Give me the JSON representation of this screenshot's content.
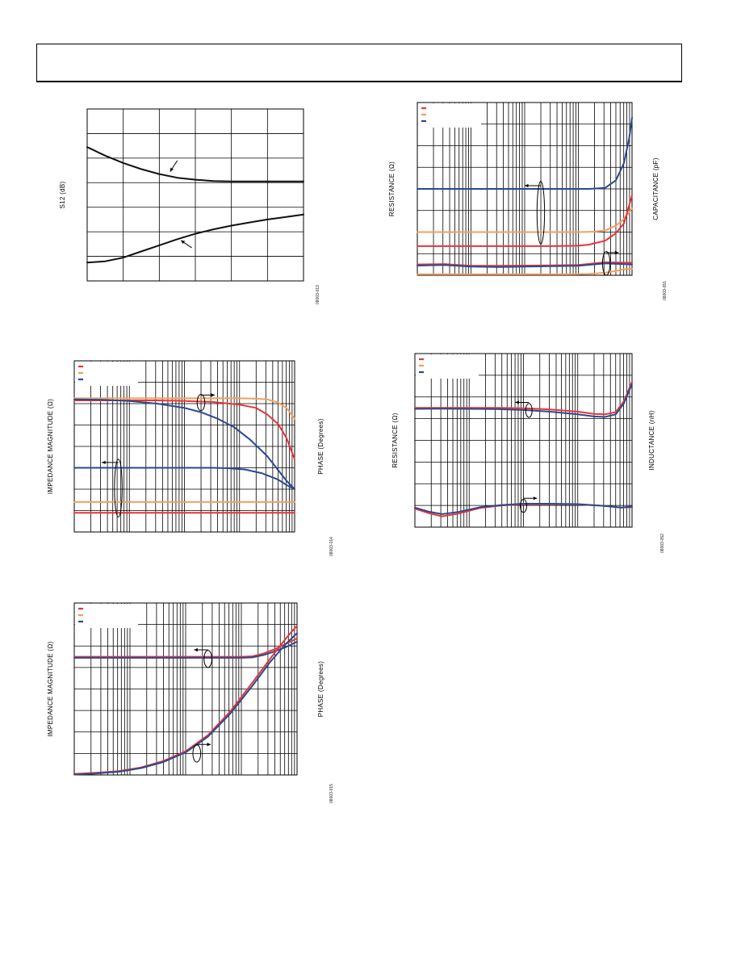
{
  "page": {
    "header_text": ""
  },
  "colors": {
    "red": "#e8343a",
    "orange": "#f0a060",
    "blue": "#2a4a8e",
    "black": "#111111"
  },
  "chart_data": [
    {
      "id": "c1",
      "type": "line",
      "grid": "linear",
      "xlim": [
        0,
        6
      ],
      "ylim": [
        0,
        7
      ],
      "ylabel_left": "S12 (dB)",
      "ylabel_right": "",
      "fig_id": "08003-013",
      "legend": [],
      "series": [
        {
          "name": "",
          "color": "black",
          "x": [
            0,
            0.5,
            1,
            1.5,
            2,
            2.5,
            3,
            3.5,
            4,
            4.5,
            5,
            5.5,
            6
          ],
          "y": [
            5.45,
            5.1,
            4.8,
            4.55,
            4.35,
            4.2,
            4.12,
            4.07,
            4.05,
            4.05,
            4.05,
            4.05,
            4.05
          ]
        },
        {
          "name": "",
          "color": "black",
          "x": [
            0,
            0.5,
            1,
            1.5,
            2,
            2.5,
            3,
            3.5,
            4,
            4.5,
            5,
            5.5,
            6
          ],
          "y": [
            0.75,
            0.8,
            0.95,
            1.2,
            1.45,
            1.7,
            1.92,
            2.1,
            2.25,
            2.38,
            2.5,
            2.6,
            2.7
          ]
        }
      ],
      "markers": [
        {
          "type": "arrow",
          "x1": 2.5,
          "y1": 4.9,
          "x2": 2.3,
          "y2": 4.45
        },
        {
          "type": "arrow",
          "x1": 2.9,
          "y1": 1.35,
          "x2": 2.6,
          "y2": 1.65
        }
      ]
    },
    {
      "id": "c2",
      "type": "line",
      "grid": "log",
      "decades": 4,
      "ylim": [
        0,
        8
      ],
      "ylabel_left": "RESISTANCE (Ω)",
      "ylabel_right": "CAPACITANCE (pF)",
      "fig_id": "08003-051",
      "legend": [
        "red",
        "orange",
        "blue"
      ],
      "series": [
        {
          "name": "",
          "color": "blue",
          "x": [
            0,
            0.5,
            1,
            1.5,
            2,
            2.5,
            3,
            3.2,
            3.5,
            3.7,
            3.85,
            3.95,
            4
          ],
          "y": [
            4.0,
            4.0,
            4.0,
            4.0,
            4.0,
            4.0,
            4.0,
            4.0,
            4.05,
            4.4,
            5.2,
            6.4,
            7.3
          ]
        },
        {
          "name": "",
          "color": "orange",
          "x": [
            0,
            0.5,
            1,
            1.5,
            2,
            2.5,
            3,
            3.3,
            3.5,
            3.7,
            3.85,
            4
          ],
          "y": [
            2.0,
            2.0,
            2.0,
            2.0,
            2.0,
            2.0,
            2.0,
            2.02,
            2.08,
            2.3,
            2.6,
            3.1
          ]
        },
        {
          "name": "",
          "color": "red",
          "x": [
            0,
            0.5,
            1,
            1.5,
            2,
            2.5,
            3,
            3.2,
            3.5,
            3.7,
            3.85,
            4
          ],
          "y": [
            1.35,
            1.35,
            1.35,
            1.35,
            1.35,
            1.35,
            1.37,
            1.42,
            1.6,
            1.95,
            2.4,
            3.7
          ]
        },
        {
          "name": "",
          "color": "red",
          "x": [
            0,
            0.5,
            1,
            1.5,
            2,
            2.5,
            3,
            3.5,
            4
          ],
          "y": [
            0.5,
            0.52,
            0.44,
            0.44,
            0.45,
            0.46,
            0.48,
            0.6,
            0.58
          ]
        },
        {
          "name": "",
          "color": "blue",
          "x": [
            0,
            0.5,
            1,
            1.5,
            2,
            2.5,
            3,
            3.5,
            4
          ],
          "y": [
            0.45,
            0.48,
            0.4,
            0.38,
            0.4,
            0.42,
            0.44,
            0.55,
            0.5
          ]
        },
        {
          "name": "",
          "color": "orange",
          "x": [
            0,
            1,
            2,
            2.8,
            3.2,
            3.5,
            3.7,
            3.85,
            4
          ],
          "y": [
            0.05,
            0.05,
            0.05,
            0.05,
            0.06,
            0.12,
            0.2,
            0.28,
            0.3
          ]
        }
      ],
      "markers": [
        {
          "type": "ellipse",
          "x": 2.3,
          "y": 2.9,
          "rx": 0.07,
          "ry": 1.45
        },
        {
          "type": "arrow",
          "x1": 2.3,
          "y1": 4.15,
          "x2": 2.0,
          "y2": 4.15
        },
        {
          "type": "ellipse",
          "x": 3.52,
          "y": 0.55,
          "rx": 0.07,
          "ry": 0.55
        },
        {
          "type": "arrow",
          "x1": 3.52,
          "y1": 1.05,
          "x2": 3.75,
          "y2": 1.05
        }
      ]
    },
    {
      "id": "c3",
      "type": "line",
      "grid": "log",
      "decades": 4,
      "ylim": [
        0,
        8
      ],
      "ylabel_left": "IMPEDANCE MAGNITUDE (Ω)",
      "ylabel_right": "PHASE (Degrees)",
      "fig_id": "08003-014",
      "legend": [
        "red",
        "orange",
        "blue"
      ],
      "series": [
        {
          "name": "",
          "color": "orange",
          "x": [
            0,
            0.5,
            1,
            1.5,
            2,
            2.5,
            3,
            3.3,
            3.5,
            3.7,
            3.85,
            4
          ],
          "y": [
            6.25,
            6.25,
            6.25,
            6.25,
            6.25,
            6.25,
            6.25,
            6.23,
            6.2,
            6.05,
            5.8,
            5.3
          ]
        },
        {
          "name": "",
          "color": "red",
          "x": [
            0,
            0.5,
            1,
            1.5,
            2,
            2.5,
            3,
            3.3,
            3.5,
            3.7,
            3.85,
            4
          ],
          "y": [
            6.15,
            6.15,
            6.15,
            6.15,
            6.12,
            6.08,
            5.95,
            5.8,
            5.5,
            5.05,
            4.4,
            3.4
          ]
        },
        {
          "name": "",
          "color": "blue",
          "x": [
            0,
            0.5,
            1,
            1.5,
            2,
            2.3,
            2.6,
            2.9,
            3.2,
            3.5,
            3.7,
            3.85,
            4
          ],
          "y": [
            6.2,
            6.18,
            6.12,
            6.0,
            5.8,
            5.6,
            5.3,
            4.9,
            4.3,
            3.55,
            2.9,
            2.4,
            2.0
          ]
        },
        {
          "name": "",
          "color": "blue",
          "x": [
            0,
            0.5,
            1,
            1.5,
            2,
            2.5,
            2.8,
            3.1,
            3.4,
            3.7,
            3.85,
            4
          ],
          "y": [
            3.0,
            3.0,
            3.0,
            3.0,
            3.0,
            3.0,
            2.98,
            2.92,
            2.75,
            2.45,
            2.2,
            2.0
          ]
        },
        {
          "name": "",
          "color": "orange",
          "x": [
            0,
            4
          ],
          "y": [
            1.4,
            1.4
          ]
        },
        {
          "name": "",
          "color": "red",
          "x": [
            0,
            4
          ],
          "y": [
            0.9,
            0.9
          ]
        }
      ],
      "markers": [
        {
          "type": "ellipse",
          "x": 2.3,
          "y": 6.05,
          "rx": 0.07,
          "ry": 0.38
        },
        {
          "type": "arrow",
          "x1": 2.3,
          "y1": 6.4,
          "x2": 2.55,
          "y2": 6.4
        },
        {
          "type": "ellipse",
          "x": 0.8,
          "y": 2.05,
          "rx": 0.07,
          "ry": 1.35
        },
        {
          "type": "arrow",
          "x1": 0.8,
          "y1": 3.25,
          "x2": 0.5,
          "y2": 3.25
        }
      ]
    },
    {
      "id": "c4",
      "type": "line",
      "grid": "log",
      "decades": 4,
      "ylim": [
        0,
        8
      ],
      "ylabel_left": "RESISTANCE (Ω)",
      "ylabel_right": "INDUCTANCE (nH)",
      "fig_id": "08003-052",
      "legend": [
        "red",
        "orange",
        "blue"
      ],
      "series": [
        {
          "name": "",
          "color": "red",
          "x": [
            0,
            0.5,
            1,
            1.5,
            2,
            2.5,
            3,
            3.3,
            3.5,
            3.7,
            3.85,
            4
          ],
          "y": [
            5.5,
            5.5,
            5.5,
            5.5,
            5.48,
            5.42,
            5.32,
            5.22,
            5.2,
            5.3,
            5.8,
            6.7
          ]
        },
        {
          "name": "",
          "color": "blue",
          "x": [
            0,
            0.5,
            1,
            1.5,
            2,
            2.5,
            3,
            3.3,
            3.5,
            3.7,
            3.85,
            4
          ],
          "y": [
            5.45,
            5.46,
            5.45,
            5.44,
            5.4,
            5.32,
            5.2,
            5.1,
            5.08,
            5.2,
            5.7,
            6.6
          ]
        },
        {
          "name": "",
          "color": "red",
          "x": [
            0,
            0.25,
            0.5,
            0.8,
            1.2,
            1.6,
            2,
            2.5,
            3,
            3.5,
            3.8,
            4
          ],
          "y": [
            0.85,
            0.65,
            0.5,
            0.62,
            0.88,
            1.0,
            1.05,
            1.06,
            1.05,
            0.98,
            0.9,
            0.92
          ]
        },
        {
          "name": "",
          "color": "blue",
          "x": [
            0,
            0.25,
            0.5,
            0.8,
            1.2,
            1.6,
            2,
            2.5,
            3,
            3.5,
            3.8,
            4
          ],
          "y": [
            0.9,
            0.72,
            0.6,
            0.7,
            0.92,
            1.02,
            1.08,
            1.08,
            1.06,
            0.98,
            0.9,
            0.95
          ]
        }
      ],
      "markers": [
        {
          "type": "ellipse",
          "x": 2.1,
          "y": 5.38,
          "rx": 0.06,
          "ry": 0.32
        },
        {
          "type": "arrow",
          "x1": 2.1,
          "y1": 5.75,
          "x2": 1.85,
          "y2": 5.75
        },
        {
          "type": "ellipse",
          "x": 2.0,
          "y": 0.98,
          "rx": 0.06,
          "ry": 0.3
        },
        {
          "type": "arrow",
          "x1": 2.0,
          "y1": 1.33,
          "x2": 2.25,
          "y2": 1.33
        }
      ]
    },
    {
      "id": "c5",
      "type": "line",
      "grid": "log",
      "decades": 4,
      "ylim": [
        0,
        8
      ],
      "ylabel_left": "IMPEDANCE MAGNITUDE (Ω)",
      "ylabel_right": "PHASE (Degrees)",
      "fig_id": "08003-015",
      "legend": [
        "red",
        "orange",
        "blue"
      ],
      "series": [
        {
          "name": "",
          "color": "red",
          "x": [
            0,
            0.5,
            1,
            1.5,
            2,
            2.5,
            3,
            3.2,
            3.4,
            3.6,
            3.8,
            4
          ],
          "y": [
            5.5,
            5.5,
            5.5,
            5.5,
            5.5,
            5.5,
            5.5,
            5.52,
            5.65,
            5.85,
            6.1,
            6.35
          ]
        },
        {
          "name": "",
          "color": "blue",
          "x": [
            0,
            0.5,
            1,
            1.5,
            2,
            2.5,
            3,
            3.2,
            3.4,
            3.6,
            3.8,
            4
          ],
          "y": [
            5.45,
            5.45,
            5.45,
            5.45,
            5.45,
            5.45,
            5.45,
            5.47,
            5.58,
            5.75,
            5.95,
            6.2
          ]
        },
        {
          "name": "",
          "color": "red",
          "x": [
            0,
            0.4,
            0.8,
            1.2,
            1.6,
            2,
            2.4,
            2.8,
            3.2,
            3.5,
            3.8,
            4
          ],
          "y": [
            0.05,
            0.1,
            0.18,
            0.35,
            0.65,
            1.1,
            1.85,
            2.95,
            4.3,
            5.35,
            6.35,
            6.95
          ]
        },
        {
          "name": "",
          "color": "blue",
          "x": [
            0,
            0.4,
            0.8,
            1.2,
            1.6,
            2,
            2.4,
            2.8,
            3.2,
            3.5,
            3.8,
            4
          ],
          "y": [
            0.02,
            0.07,
            0.15,
            0.32,
            0.6,
            1.05,
            1.78,
            2.85,
            4.15,
            5.2,
            6.1,
            6.6
          ]
        }
      ],
      "markers": [
        {
          "type": "ellipse",
          "x": 2.4,
          "y": 5.4,
          "rx": 0.07,
          "ry": 0.4
        },
        {
          "type": "arrow",
          "x1": 2.4,
          "y1": 5.82,
          "x2": 2.15,
          "y2": 5.82
        },
        {
          "type": "ellipse",
          "x": 2.2,
          "y": 1.0,
          "rx": 0.07,
          "ry": 0.4
        },
        {
          "type": "arrow",
          "x1": 2.2,
          "y1": 1.42,
          "x2": 2.45,
          "y2": 1.42
        }
      ]
    }
  ]
}
